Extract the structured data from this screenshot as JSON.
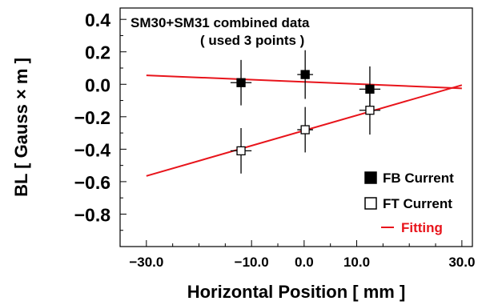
{
  "chart_data": {
    "type": "scatter",
    "title": "SM30+SM31 combined data",
    "subtitle": "( used 3 points )",
    "xlabel": "Horizontal Position [ mm ]",
    "ylabel": "BL [ Gauss × m ]",
    "xlim": [
      -35.0,
      32.0
    ],
    "ylim": [
      -1.0,
      0.47
    ],
    "x_ticks": [
      -30,
      -10,
      0,
      10,
      30
    ],
    "x_tick_labels": [
      "−30.0",
      "−10.0",
      "0.0",
      "10.0",
      "30.0"
    ],
    "y_ticks": [
      0.4,
      0.2,
      0.0,
      -0.2,
      -0.4,
      -0.6,
      -0.8
    ],
    "y_tick_labels": [
      "0.4",
      "0.2",
      "0.0",
      "−0.2",
      "−0.4",
      "−0.6",
      "−0.8"
    ],
    "grid": false,
    "legend_position": "bottom-right",
    "series": [
      {
        "name": "FB Current",
        "marker": "filled-square",
        "points": [
          {
            "x": -12.0,
            "y": 0.01,
            "xerr": 2.0,
            "yerr": 0.14
          },
          {
            "x": 0.2,
            "y": 0.06,
            "xerr": 1.5,
            "yerr": 0.15
          },
          {
            "x": 12.5,
            "y": -0.03,
            "xerr": 2.0,
            "yerr": 0.14
          }
        ]
      },
      {
        "name": "FT Current",
        "marker": "open-square",
        "points": [
          {
            "x": -12.0,
            "y": -0.41,
            "xerr": 2.0,
            "yerr": 0.14
          },
          {
            "x": 0.2,
            "y": -0.28,
            "xerr": 1.5,
            "yerr": 0.14
          },
          {
            "x": 12.5,
            "y": -0.16,
            "xerr": 2.0,
            "yerr": 0.15
          }
        ]
      },
      {
        "name": "Fitting",
        "marker": "line",
        "color": "#e8141b",
        "lines": [
          {
            "x": [
              -30.0,
              30.0
            ],
            "y": [
              0.055,
              -0.025
            ]
          },
          {
            "x": [
              -30.0,
              30.0
            ],
            "y": [
              -0.565,
              -0.005
            ]
          }
        ]
      }
    ]
  }
}
